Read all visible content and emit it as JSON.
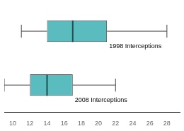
{
  "chart_data": {
    "type": "boxplot",
    "orientation": "horizontal",
    "categories": [
      "1998 Interceptions",
      "2008 Interceptions"
    ],
    "boxes": [
      {
        "min": 11,
        "q1": 14,
        "median": 17,
        "q3": 21,
        "max": 28
      },
      {
        "min": 9,
        "q1": 12,
        "median": 14,
        "q3": 17,
        "max": 22
      }
    ],
    "color": "#5bbcbf",
    "xlim": [
      9.0,
      29.5
    ],
    "xticks": [
      10,
      12,
      14,
      16,
      18,
      20,
      22,
      24,
      26,
      28
    ],
    "grid": false,
    "tick_labels": "x"
  }
}
